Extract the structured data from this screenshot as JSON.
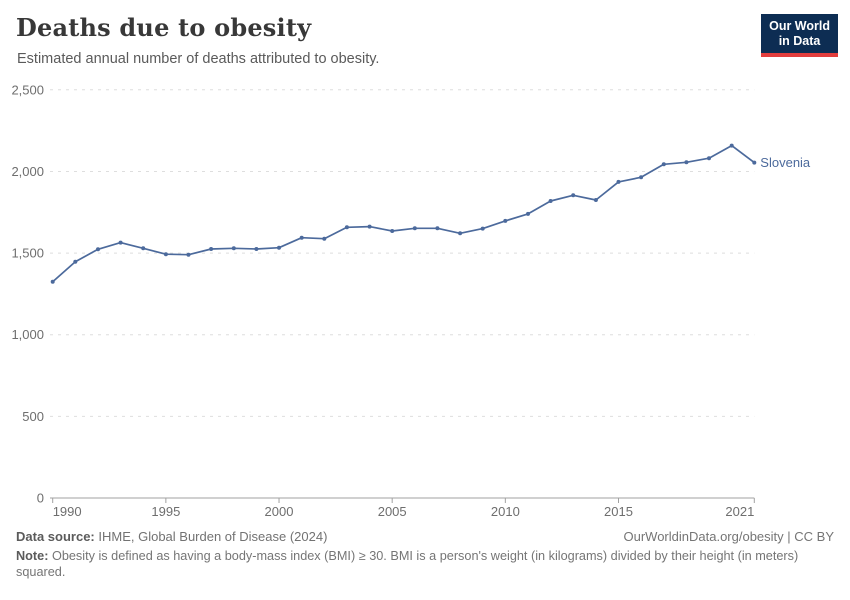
{
  "header": {
    "title": "Deaths due to obesity",
    "subtitle": "Estimated annual number of deaths attributed to obesity.",
    "logo_line1": "Our World",
    "logo_line2": "in Data"
  },
  "chart_data": {
    "type": "line",
    "title": "Deaths due to obesity",
    "subtitle": "Estimated annual number of deaths attributed to obesity.",
    "xlim": [
      1990,
      2021
    ],
    "ylim": [
      0,
      2500
    ],
    "xticks": [
      1990,
      1995,
      2000,
      2005,
      2010,
      2015,
      2021
    ],
    "yticks": [
      0,
      500,
      1000,
      1500,
      2000,
      2500
    ],
    "ytick_labels": [
      "0",
      "500",
      "1,000",
      "1,500",
      "2,000",
      "2,500"
    ],
    "grid": "horizontal-dashed",
    "legend_position": "end-of-line-label",
    "end_label": "Slovenia",
    "series": [
      {
        "name": "Slovenia",
        "color": "#4c6a9c",
        "x": [
          1990,
          1991,
          1992,
          1993,
          1994,
          1995,
          1996,
          1997,
          1998,
          1999,
          2000,
          2001,
          2002,
          2003,
          2004,
          2005,
          2006,
          2007,
          2008,
          2009,
          2010,
          2011,
          2012,
          2013,
          2014,
          2015,
          2016,
          2017,
          2018,
          2019,
          2020,
          2021
        ],
        "values": [
          1325,
          1447,
          1523,
          1564,
          1529,
          1493,
          1490,
          1525,
          1529,
          1525,
          1533,
          1594,
          1588,
          1658,
          1662,
          1635,
          1652,
          1652,
          1621,
          1650,
          1697,
          1740,
          1819,
          1854,
          1825,
          1936,
          1964,
          2044,
          2056,
          2081,
          2158,
          2054
        ]
      }
    ]
  },
  "footer": {
    "data_source_label": "Data source:",
    "data_source_text": " IHME, Global Burden of Disease (2024)",
    "link": "OurWorldinData.org/obesity | CC BY",
    "note_label": "Note:",
    "note_text": " Obesity is defined as having a body-mass index (BMI) ≥ 30. BMI is a person's weight (in kilograms) divided by their height (in meters) squared."
  },
  "colors": {
    "line": "#4c6a9c",
    "grid": "#dedede",
    "axis": "#a1a1a1",
    "tick_text": "#6e6e6e",
    "logo_bg": "#0d2d53",
    "logo_stripe": "#e23d3d"
  }
}
